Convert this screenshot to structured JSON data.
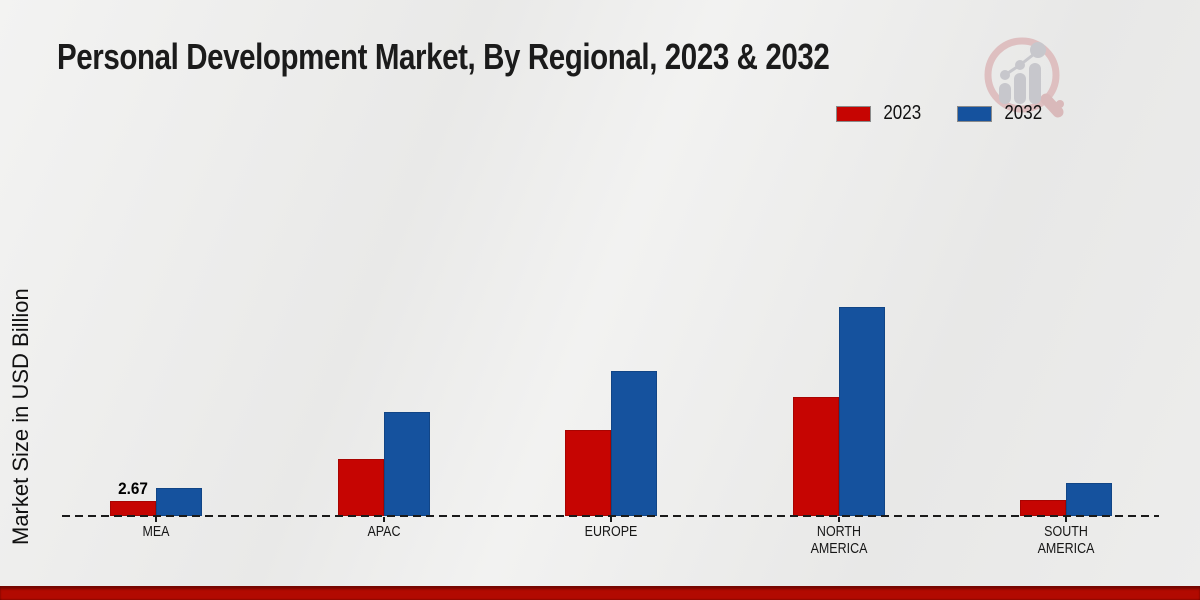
{
  "chart_data": {
    "type": "bar",
    "title": "Personal Development Market, By Regional, 2023 & 2032",
    "xlabel": "",
    "ylabel": "Market Size in USD Billion",
    "categories": [
      "MEA",
      "APAC",
      "EUROPE",
      "NORTH\nAMERICA",
      "SOUTH\nAMERICA"
    ],
    "series": [
      {
        "name": "2023",
        "color": "#c60502",
        "values": [
          2.67,
          10.4,
          15.8,
          21.9,
          2.9
        ]
      },
      {
        "name": "2032",
        "color": "#15529e",
        "values": [
          5.2,
          19.0,
          26.6,
          38.3,
          6.0
        ]
      }
    ],
    "value_labels": [
      {
        "series": "2023",
        "category": "MEA",
        "text": "2.67"
      }
    ],
    "ylim": [
      0,
      40
    ],
    "grid": false,
    "legend_position": "top-right",
    "baseline_style": "dashed"
  },
  "footer": {
    "color": "#b20a01"
  },
  "watermark": {
    "ring_color": "#debfc0",
    "bar_color": "#c7c7cc"
  }
}
